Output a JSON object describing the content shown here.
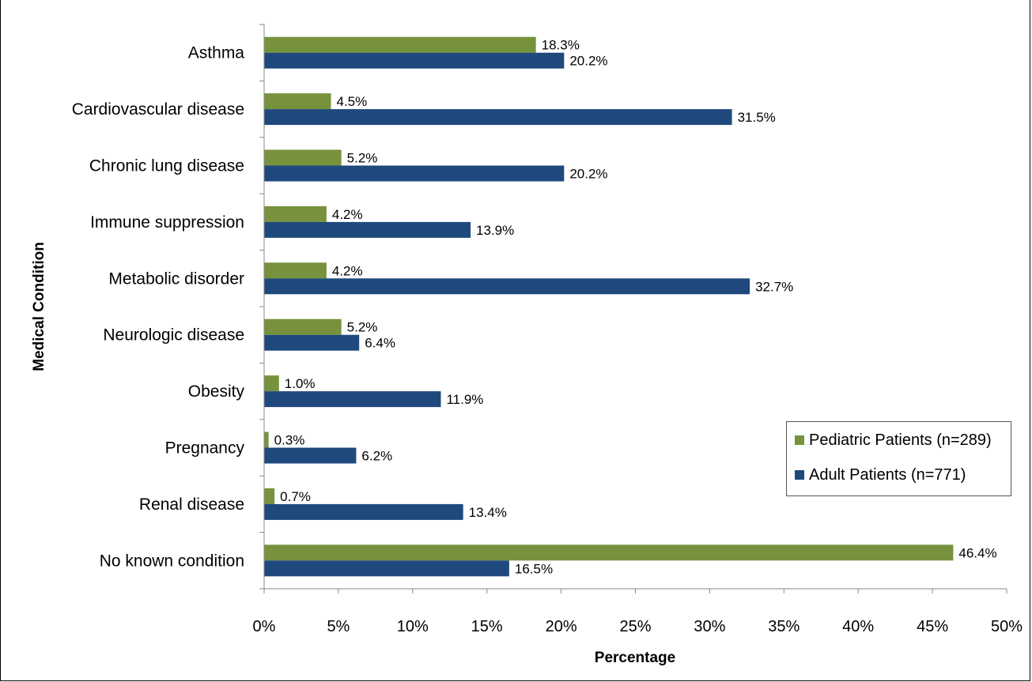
{
  "chart_data": {
    "type": "bar",
    "orientation": "horizontal",
    "title": "",
    "xlabel": "Percentage",
    "ylabel": "Medical Condition",
    "xlim": [
      0,
      50
    ],
    "x_ticks": [
      "0%",
      "5%",
      "10%",
      "15%",
      "20%",
      "25%",
      "30%",
      "35%",
      "40%",
      "45%",
      "50%"
    ],
    "categories": [
      "Asthma",
      "Cardiovascular disease",
      "Chronic lung disease",
      "Immune suppression",
      "Metabolic disorder",
      "Neurologic disease",
      "Obesity",
      "Pregnancy",
      "Renal disease",
      "No known condition"
    ],
    "series": [
      {
        "name": "Pediatric Patients (n=289)",
        "color": "#76923C",
        "values": [
          18.3,
          4.5,
          5.2,
          4.2,
          4.2,
          5.2,
          1.0,
          0.3,
          0.7,
          46.4
        ],
        "labels": [
          "18.3%",
          "4.5%",
          "5.2%",
          "4.2%",
          "4.2%",
          "5.2%",
          "1.0%",
          "0.3%",
          "0.7%",
          "46.4%"
        ]
      },
      {
        "name": "Adult Patients (n=771)",
        "color": "#1F497D",
        "values": [
          20.2,
          31.5,
          20.2,
          13.9,
          32.7,
          6.4,
          11.9,
          6.2,
          13.4,
          16.5
        ],
        "labels": [
          "20.2%",
          "31.5%",
          "20.2%",
          "13.9%",
          "32.7%",
          "6.4%",
          "11.9%",
          "6.2%",
          "13.4%",
          "16.5%"
        ]
      }
    ],
    "grid": false,
    "legend_position": "right"
  }
}
